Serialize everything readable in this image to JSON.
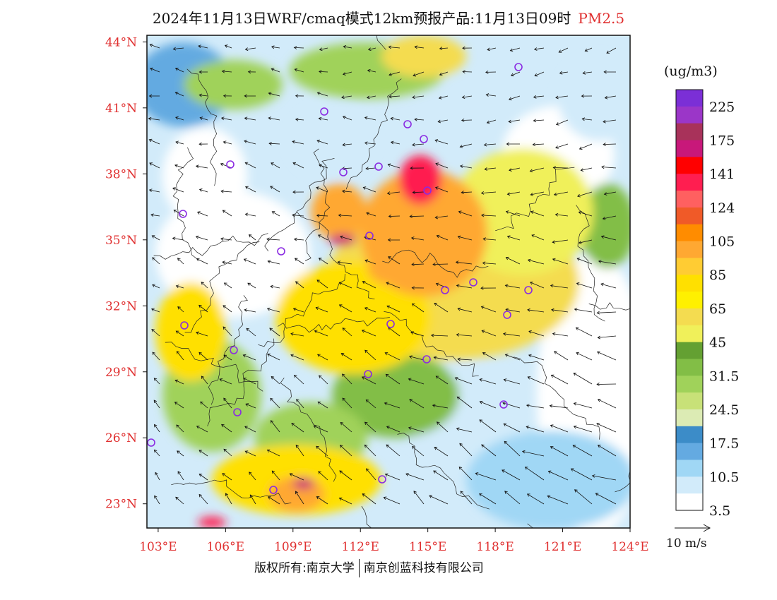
{
  "title": {
    "main": "2024年11月13日WRF/cmaq模式12km预报产品:11月13日09时",
    "pollutant": "PM2.5"
  },
  "axes": {
    "lat_ticks": [
      "44°N",
      "41°N",
      "38°N",
      "35°N",
      "32°N",
      "29°N",
      "26°N",
      "23°N"
    ],
    "lon_ticks": [
      "103°E",
      "106°E",
      "109°E",
      "112°E",
      "115°E",
      "118°E",
      "121°E",
      "124°E"
    ],
    "tick_color": "#e03030"
  },
  "colorbar": {
    "unit": "(ug/m3)",
    "colors_top_to_bottom": [
      "#7b2fd6",
      "#9b36c8",
      "#a8325a",
      "#c8187a",
      "#ff0000",
      "#ff1e50",
      "#ff6060",
      "#f05a28",
      "#ff8c00",
      "#ffa832",
      "#ffcc33",
      "#ffe000",
      "#fff000",
      "#f4dc50",
      "#f0f05a",
      "#64a032",
      "#82be46",
      "#a0d25a",
      "#c8e178",
      "#dcebb4",
      "#3c8cc8",
      "#64aae1",
      "#a0d7f5",
      "#d2ebfa",
      "#ffffff"
    ],
    "labels_top_to_bottom": [
      "225",
      "175",
      "141",
      "124",
      "105",
      "85",
      "65",
      "45",
      "31.5",
      "24.5",
      "17.5",
      "10.5",
      "3.5"
    ]
  },
  "wind_reference": {
    "label": "10 m/s"
  },
  "footer": {
    "copyright_prefix": "版权所有:南京大学",
    "company": "南京创蓝科技有限公司"
  },
  "colors": {
    "clean": "#ffffff",
    "blue": "#64aae1",
    "green": "#82be46",
    "yellow": "#ffe000",
    "orange": "#ffa832",
    "red": "#ff1e50",
    "station": "#8a2be2",
    "frame": "#111111"
  }
}
